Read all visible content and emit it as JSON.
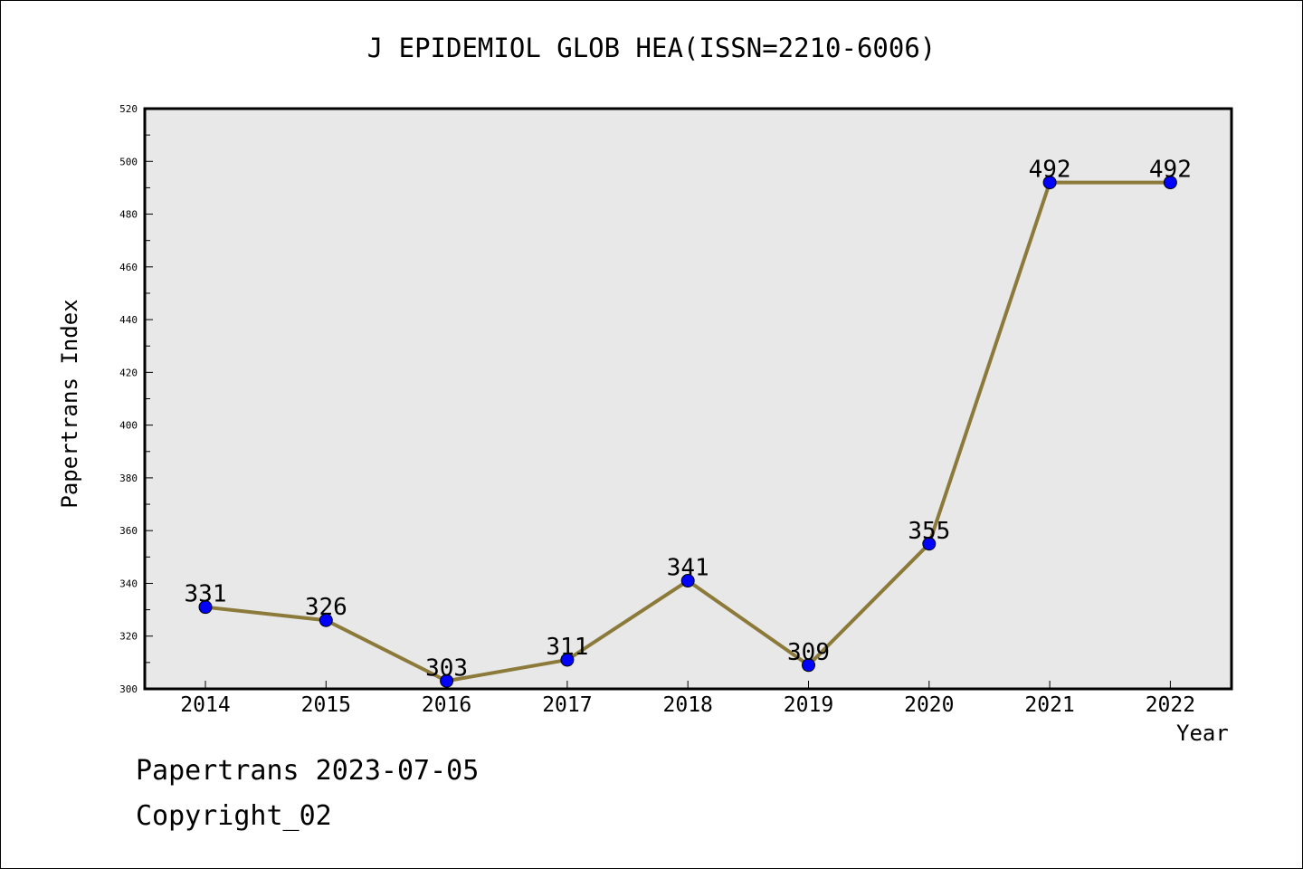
{
  "chart_data": {
    "type": "line",
    "title": "J EPIDEMIOL GLOB HEA(ISSN=2210-6006)",
    "xlabel": "Year",
    "ylabel": "Papertrans Index",
    "x": [
      "2014",
      "2015",
      "2016",
      "2017",
      "2018",
      "2019",
      "2020",
      "2021",
      "2022"
    ],
    "series": [
      {
        "values": [
          331,
          326,
          303,
          311,
          341,
          309,
          355,
          492,
          492
        ]
      }
    ],
    "ylim": [
      300,
      520
    ],
    "yticks": [
      300,
      320,
      340,
      360,
      380,
      400,
      420,
      440,
      460,
      480,
      500,
      520
    ],
    "grid": false,
    "plot_background": "#e8e8e8",
    "line_color": "#8b7a3a",
    "marker_color": "#0000ff"
  },
  "footer": {
    "date_text": "Papertrans 2023-07-05",
    "copyright_text": "Copyright_02"
  }
}
